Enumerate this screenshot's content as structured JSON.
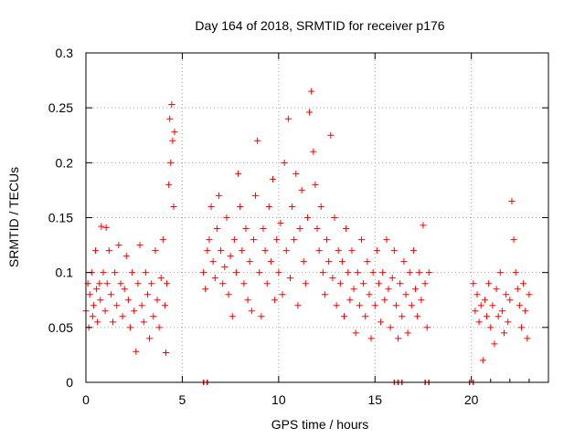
{
  "chart_data": {
    "type": "scatter",
    "title": "Day 164 of 2018, SRMTID for receiver p176",
    "xlabel": "GPS time / hours",
    "ylabel": "SRMTID / TECUs",
    "xlim": [
      0,
      24
    ],
    "ylim": [
      0,
      0.3
    ],
    "xticks": [
      0,
      5,
      10,
      15,
      20
    ],
    "xtick_labels": [
      "0",
      "5",
      "10",
      "15",
      "20"
    ],
    "yticks": [
      0,
      0.05,
      0.1,
      0.15,
      0.2,
      0.25,
      0.3
    ],
    "ytick_labels": [
      "0",
      "0.05",
      "0.1",
      "0.15",
      "0.2",
      "0.25",
      "0.3"
    ],
    "grid": true,
    "marker": "+",
    "color": "#ff0000",
    "series": [
      {
        "name": "SRMTID",
        "points": [
          [
            0.0,
            0.065
          ],
          [
            0.1,
            0.09
          ],
          [
            0.15,
            0.05
          ],
          [
            0.2,
            0.08
          ],
          [
            0.3,
            0.1
          ],
          [
            0.35,
            0.06
          ],
          [
            0.4,
            0.07
          ],
          [
            0.5,
            0.12
          ],
          [
            0.55,
            0.085
          ],
          [
            0.6,
            0.055
          ],
          [
            0.7,
            0.09
          ],
          [
            0.75,
            0.075
          ],
          [
            0.8,
            0.142
          ],
          [
            0.9,
            0.1
          ],
          [
            1.0,
            0.065
          ],
          [
            1.05,
            0.141
          ],
          [
            1.1,
            0.09
          ],
          [
            1.2,
            0.12
          ],
          [
            1.3,
            0.08
          ],
          [
            1.4,
            0.055
          ],
          [
            1.5,
            0.1
          ],
          [
            1.6,
            0.07
          ],
          [
            1.7,
            0.125
          ],
          [
            1.8,
            0.09
          ],
          [
            1.9,
            0.06
          ],
          [
            2.0,
            0.085
          ],
          [
            2.1,
            0.115
          ],
          [
            2.2,
            0.075
          ],
          [
            2.3,
            0.05
          ],
          [
            2.4,
            0.1
          ],
          [
            2.5,
            0.065
          ],
          [
            2.6,
            0.028
          ],
          [
            2.7,
            0.09
          ],
          [
            2.8,
            0.125
          ],
          [
            2.9,
            0.07
          ],
          [
            3.0,
            0.055
          ],
          [
            3.1,
            0.1
          ],
          [
            3.2,
            0.08
          ],
          [
            3.3,
            0.04
          ],
          [
            3.4,
            0.09
          ],
          [
            3.5,
            0.06
          ],
          [
            3.6,
            0.12
          ],
          [
            3.7,
            0.075
          ],
          [
            3.8,
            0.05
          ],
          [
            3.9,
            0.095
          ],
          [
            4.0,
            0.13
          ],
          [
            4.1,
            0.07
          ],
          [
            4.15,
            0.027
          ],
          [
            4.2,
            0.09
          ],
          [
            4.3,
            0.18
          ],
          [
            4.35,
            0.24
          ],
          [
            4.4,
            0.2
          ],
          [
            4.45,
            0.253
          ],
          [
            4.5,
            0.22
          ],
          [
            4.55,
            0.16
          ],
          [
            4.6,
            0.228
          ],
          [
            6.1,
            0.1
          ],
          [
            6.2,
            0.085
          ],
          [
            6.3,
            0.12
          ],
          [
            6.4,
            0.13
          ],
          [
            6.5,
            0.16
          ],
          [
            6.6,
            0.11
          ],
          [
            6.7,
            0.095
          ],
          [
            6.8,
            0.14
          ],
          [
            6.9,
            0.17
          ],
          [
            7.0,
            0.12
          ],
          [
            7.1,
            0.09
          ],
          [
            7.2,
            0.105
          ],
          [
            7.3,
            0.15
          ],
          [
            7.4,
            0.08
          ],
          [
            7.5,
            0.115
          ],
          [
            7.6,
            0.06
          ],
          [
            7.7,
            0.13
          ],
          [
            7.8,
            0.1
          ],
          [
            7.9,
            0.19
          ],
          [
            8.0,
            0.16
          ],
          [
            8.1,
            0.12
          ],
          [
            8.2,
            0.09
          ],
          [
            8.3,
            0.14
          ],
          [
            8.4,
            0.075
          ],
          [
            8.5,
            0.11
          ],
          [
            8.6,
            0.065
          ],
          [
            8.7,
            0.13
          ],
          [
            8.8,
            0.17
          ],
          [
            8.9,
            0.22
          ],
          [
            9.0,
            0.1
          ],
          [
            9.1,
            0.06
          ],
          [
            9.2,
            0.14
          ],
          [
            9.3,
            0.12
          ],
          [
            9.4,
            0.09
          ],
          [
            9.5,
            0.16
          ],
          [
            9.6,
            0.11
          ],
          [
            9.7,
            0.185
          ],
          [
            9.8,
            0.075
          ],
          [
            9.9,
            0.13
          ],
          [
            10.0,
            0.1
          ],
          [
            10.1,
            0.145
          ],
          [
            10.2,
            0.08
          ],
          [
            10.3,
            0.2
          ],
          [
            10.4,
            0.12
          ],
          [
            10.5,
            0.24
          ],
          [
            10.6,
            0.095
          ],
          [
            10.7,
            0.16
          ],
          [
            10.8,
            0.13
          ],
          [
            10.9,
            0.19
          ],
          [
            11.0,
            0.07
          ],
          [
            11.1,
            0.14
          ],
          [
            11.2,
            0.175
          ],
          [
            11.3,
            0.11
          ],
          [
            11.4,
            0.09
          ],
          [
            11.5,
            0.15
          ],
          [
            11.6,
            0.246
          ],
          [
            11.7,
            0.265
          ],
          [
            11.8,
            0.21
          ],
          [
            11.9,
            0.18
          ],
          [
            12.0,
            0.14
          ],
          [
            12.1,
            0.12
          ],
          [
            12.2,
            0.16
          ],
          [
            12.3,
            0.1
          ],
          [
            12.4,
            0.08
          ],
          [
            12.5,
            0.13
          ],
          [
            12.6,
            0.11
          ],
          [
            12.7,
            0.225
          ],
          [
            12.8,
            0.095
          ],
          [
            12.9,
            0.15
          ],
          [
            13.0,
            0.07
          ],
          [
            13.1,
            0.12
          ],
          [
            13.2,
            0.09
          ],
          [
            13.3,
            0.11
          ],
          [
            13.4,
            0.06
          ],
          [
            13.5,
            0.14
          ],
          [
            13.6,
            0.1
          ],
          [
            13.7,
            0.075
          ],
          [
            13.8,
            0.12
          ],
          [
            13.9,
            0.085
          ],
          [
            14.0,
            0.045
          ],
          [
            14.1,
            0.1
          ],
          [
            14.2,
            0.07
          ],
          [
            14.3,
            0.13
          ],
          [
            14.4,
            0.09
          ],
          [
            14.5,
            0.06
          ],
          [
            14.6,
            0.11
          ],
          [
            14.7,
            0.08
          ],
          [
            14.8,
            0.04
          ],
          [
            14.9,
            0.1
          ],
          [
            15.0,
            0.07
          ],
          [
            15.1,
            0.12
          ],
          [
            15.2,
            0.09
          ],
          [
            15.3,
            0.055
          ],
          [
            15.4,
            0.1
          ],
          [
            15.5,
            0.075
          ],
          [
            15.6,
            0.13
          ],
          [
            15.7,
            0.085
          ],
          [
            15.8,
            0.05
          ],
          [
            15.9,
            0.095
          ],
          [
            16.0,
            0.12
          ],
          [
            16.1,
            0.07
          ],
          [
            16.2,
            0.04
          ],
          [
            16.3,
            0.09
          ],
          [
            16.4,
            0.06
          ],
          [
            16.5,
            0.11
          ],
          [
            16.6,
            0.08
          ],
          [
            16.7,
            0.045
          ],
          [
            16.8,
            0.1
          ],
          [
            16.9,
            0.07
          ],
          [
            17.0,
            0.12
          ],
          [
            17.1,
            0.085
          ],
          [
            17.2,
            0.06
          ],
          [
            17.3,
            0.1
          ],
          [
            17.4,
            0.075
          ],
          [
            17.5,
            0.143
          ],
          [
            17.6,
            0.09
          ],
          [
            17.7,
            0.05
          ],
          [
            17.8,
            0.1
          ],
          [
            20.1,
            0.09
          ],
          [
            20.2,
            0.065
          ],
          [
            20.3,
            0.08
          ],
          [
            20.4,
            0.055
          ],
          [
            20.5,
            0.07
          ],
          [
            20.6,
            0.02
          ],
          [
            20.7,
            0.075
          ],
          [
            20.8,
            0.06
          ],
          [
            20.9,
            0.09
          ],
          [
            21.0,
            0.05
          ],
          [
            21.1,
            0.07
          ],
          [
            21.2,
            0.035
          ],
          [
            21.3,
            0.085
          ],
          [
            21.4,
            0.06
          ],
          [
            21.5,
            0.1
          ],
          [
            21.6,
            0.065
          ],
          [
            21.7,
            0.045
          ],
          [
            21.8,
            0.08
          ],
          [
            21.9,
            0.055
          ],
          [
            22.0,
            0.075
          ],
          [
            22.1,
            0.165
          ],
          [
            22.2,
            0.13
          ],
          [
            22.3,
            0.1
          ],
          [
            22.4,
            0.085
          ],
          [
            22.5,
            0.07
          ],
          [
            22.6,
            0.05
          ],
          [
            22.7,
            0.09
          ],
          [
            22.8,
            0.065
          ],
          [
            22.9,
            0.04
          ],
          [
            23.0,
            0.08
          ]
        ]
      }
    ],
    "baseline_markers_x": [
      6.2,
      16.1,
      16.3,
      17.7,
      20.0
    ]
  }
}
